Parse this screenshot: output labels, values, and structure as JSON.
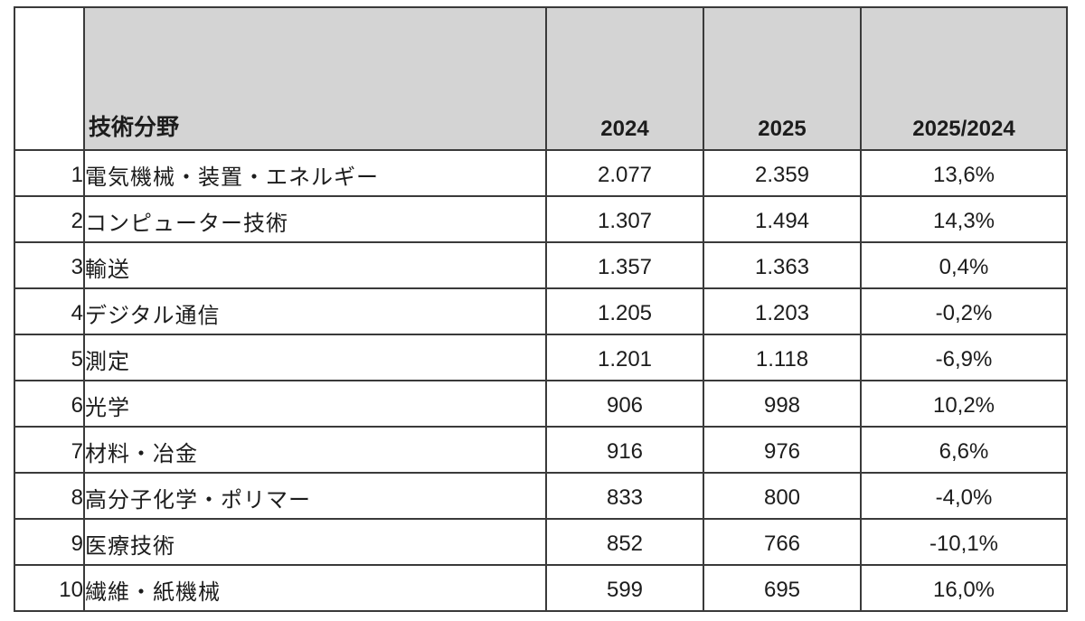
{
  "table": {
    "columns": {
      "rank_label": "",
      "field_label": "技術分野",
      "y2024_label": "2024",
      "y2025_label": "2025",
      "ratio_label": "2025/2024"
    },
    "rows": [
      {
        "rank": "1",
        "field": "電気機械・装置・エネルギー",
        "y2024": "2.077",
        "y2025": "2.359",
        "ratio": "13,6%"
      },
      {
        "rank": "2",
        "field": "コンピューター技術",
        "y2024": "1.307",
        "y2025": "1.494",
        "ratio": "14,3%"
      },
      {
        "rank": "3",
        "field": "輸送",
        "y2024": "1.357",
        "y2025": "1.363",
        "ratio": "0,4%"
      },
      {
        "rank": "4",
        "field": "デジタル通信",
        "y2024": "1.205",
        "y2025": "1.203",
        "ratio": "-0,2%"
      },
      {
        "rank": "5",
        "field": "測定",
        "y2024": "1.201",
        "y2025": "1.118",
        "ratio": "-6,9%"
      },
      {
        "rank": "6",
        "field": "光学",
        "y2024": "906",
        "y2025": "998",
        "ratio": "10,2%"
      },
      {
        "rank": "7",
        "field": "材料・冶金",
        "y2024": "916",
        "y2025": "976",
        "ratio": "6,6%"
      },
      {
        "rank": "8",
        "field": "高分子化学・ポリマー",
        "y2024": "833",
        "y2025": "800",
        "ratio": "-4,0%"
      },
      {
        "rank": "9",
        "field": "医療技術",
        "y2024": "852",
        "y2025": "766",
        "ratio": "-10,1%"
      },
      {
        "rank": "10",
        "field": "繊維・紙機械",
        "y2024": "599",
        "y2025": "695",
        "ratio": "16,0%"
      }
    ]
  },
  "colors": {
    "header_fill": "#d4d4d4",
    "border": "#3a3a3a",
    "text": "#1c1c1c",
    "background": "#ffffff"
  },
  "chart_data": {
    "type": "table",
    "title": "",
    "columns": [
      "技術分野",
      "2024",
      "2025",
      "2025/2024"
    ],
    "categories": [
      "電気機械・装置・エネルギー",
      "コンピューター技術",
      "輸送",
      "デジタル通信",
      "測定",
      "光学",
      "材料・冶金",
      "高分子化学・ポリマー",
      "医療技術",
      "繊維・紙機械"
    ],
    "series": [
      {
        "name": "2024",
        "values": [
          2077,
          1307,
          1357,
          1205,
          1201,
          906,
          916,
          833,
          852,
          599
        ]
      },
      {
        "name": "2025",
        "values": [
          2359,
          1494,
          1363,
          1203,
          1118,
          998,
          976,
          800,
          766,
          695
        ]
      },
      {
        "name": "2025/2024",
        "values": [
          "13,6%",
          "14,3%",
          "0,4%",
          "-0,2%",
          "-6,9%",
          "10,2%",
          "6,6%",
          "-4,0%",
          "-10,1%",
          "16,0%"
        ]
      }
    ]
  }
}
